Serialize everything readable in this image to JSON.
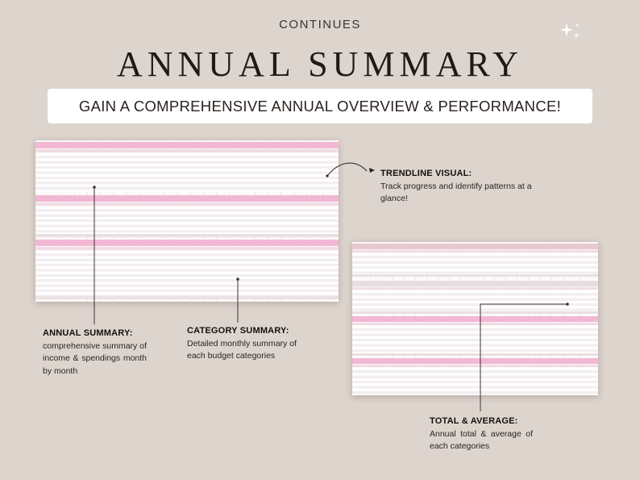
{
  "header": {
    "eyebrow": "CONTINUES",
    "title": "ANNUAL SUMMARY",
    "banner": "GAIN A COMPREHENSIVE ANNUAL OVERVIEW & PERFORMANCE!"
  },
  "annotations": {
    "trendline": {
      "title": "TRENDLINE VISUAL:",
      "body": "Track progress and identify patterns at a glance!"
    },
    "annual": {
      "title": "ANNUAL SUMMARY:",
      "body": "comprehensive summary of income & spendings month by month"
    },
    "category": {
      "title": "CATEGORY SUMMARY:",
      "body": "Detailed monthly summary of each budget categories"
    },
    "total": {
      "title": "TOTAL & AVERAGE:",
      "body": "Annual total & average of each categories"
    }
  },
  "colors": {
    "background": "#ddd4cd",
    "banner": "#ffffff",
    "accent_pink": "#f2b8d3",
    "accent_rose": "#e8c9cf",
    "accent_mauve": "#e7dce0"
  },
  "icons": {
    "sparkle": "sparkle-icon"
  }
}
